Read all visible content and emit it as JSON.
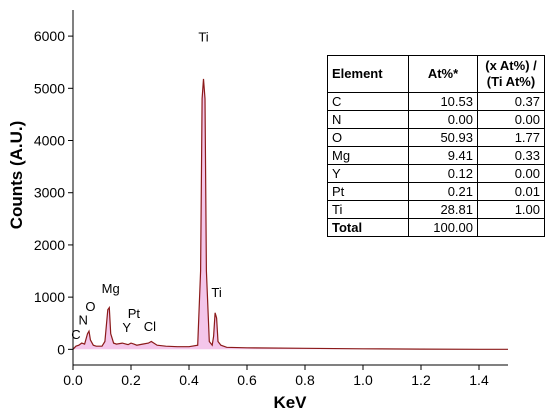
{
  "chart_data": {
    "type": "line",
    "title": "",
    "xlabel": "KeV",
    "ylabel": "Counts (A.U.)",
    "xlim": [
      0.0,
      1.5
    ],
    "ylim": [
      -300,
      6500
    ],
    "xticks": [
      "0.0",
      "0.2",
      "0.4",
      "0.6",
      "0.8",
      "1.0",
      "1.2",
      "1.4"
    ],
    "yticks": [
      "0",
      "1000",
      "2000",
      "3000",
      "4000",
      "5000",
      "6000"
    ],
    "line_color": "#8b1a1a",
    "fill_color": "#f4c6ea",
    "series": [
      {
        "x": [
          0.0,
          0.01,
          0.02,
          0.03,
          0.04,
          0.05,
          0.055,
          0.06,
          0.07,
          0.08,
          0.1,
          0.11,
          0.12,
          0.125,
          0.13,
          0.14,
          0.15,
          0.17,
          0.19,
          0.2,
          0.21,
          0.22,
          0.24,
          0.26,
          0.27,
          0.29,
          0.32,
          0.36,
          0.4,
          0.43,
          0.44,
          0.445,
          0.45,
          0.455,
          0.46,
          0.47,
          0.48,
          0.485,
          0.49,
          0.495,
          0.5,
          0.51,
          0.53,
          0.6,
          0.8,
          1.0,
          1.2,
          1.4,
          1.5
        ],
        "y": [
          0,
          60,
          80,
          120,
          100,
          300,
          350,
          180,
          80,
          60,
          60,
          150,
          760,
          800,
          300,
          120,
          100,
          120,
          90,
          120,
          100,
          80,
          100,
          120,
          150,
          80,
          60,
          50,
          50,
          80,
          1500,
          4800,
          5180,
          4800,
          1500,
          150,
          80,
          250,
          700,
          600,
          150,
          80,
          40,
          30,
          20,
          10,
          5,
          0,
          0
        ]
      }
    ],
    "peak_labels": [
      {
        "text": "Ti",
        "x": 0.45,
        "y": 5900
      },
      {
        "text": "Ti",
        "x": 0.495,
        "y": 1000
      },
      {
        "text": "Mg",
        "x": 0.13,
        "y": 1080
      },
      {
        "text": "O",
        "x": 0.06,
        "y": 730
      },
      {
        "text": "N",
        "x": 0.035,
        "y": 480
      },
      {
        "text": "C",
        "x": 0.01,
        "y": 200
      },
      {
        "text": "Pt",
        "x": 0.21,
        "y": 600
      },
      {
        "text": "Y",
        "x": 0.185,
        "y": 330
      },
      {
        "text": "Cl",
        "x": 0.265,
        "y": 350
      }
    ]
  },
  "table": {
    "headers": [
      "Element",
      "At%*",
      "(x At%) / (Ti At%)"
    ],
    "rows": [
      [
        "C",
        "10.53",
        "0.37"
      ],
      [
        "N",
        "0.00",
        "0.00"
      ],
      [
        "O",
        "50.93",
        "1.77"
      ],
      [
        "Mg",
        "9.41",
        "0.33"
      ],
      [
        "Y",
        "0.12",
        "0.00"
      ],
      [
        "Pt",
        "0.21",
        "0.01"
      ],
      [
        "Ti",
        "28.81",
        "1.00"
      ],
      [
        "Total",
        "100.00",
        ""
      ]
    ]
  }
}
